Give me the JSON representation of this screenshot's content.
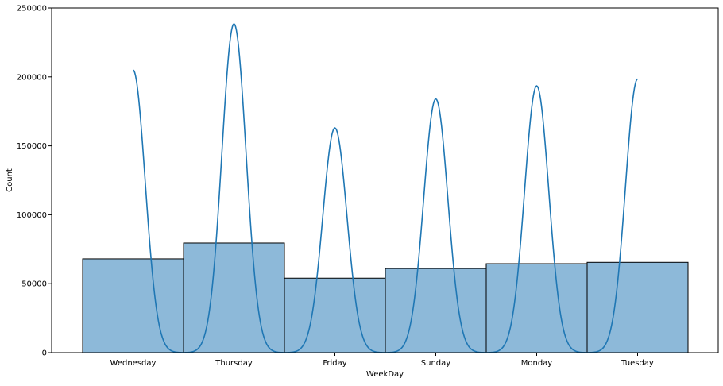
{
  "chart_data": {
    "type": "bar",
    "title": "",
    "xlabel": "WeekDay",
    "ylabel": "Count",
    "categories": [
      "Wednesday",
      "Thursday",
      "Friday",
      "Sunday",
      "Monday",
      "Tuesday"
    ],
    "values": [
      68000,
      79500,
      54000,
      61000,
      64500,
      65500
    ],
    "ylim": [
      0,
      250000
    ],
    "yticks": [
      0,
      50000,
      100000,
      150000,
      200000,
      250000
    ],
    "ytick_labels": [
      "0",
      "50000",
      "100000",
      "150000",
      "200000",
      "250000"
    ],
    "grid": false,
    "kde": {
      "type": "line",
      "peaks": [
        {
          "category": "Wednesday",
          "value": 205000
        },
        {
          "category": "Thursday",
          "value": 238500
        },
        {
          "category": "Friday",
          "value": 163000
        },
        {
          "category": "Sunday",
          "value": 184000
        },
        {
          "category": "Monday",
          "value": 193500
        },
        {
          "category": "Tuesday",
          "value": 198500
        }
      ],
      "minimum": 0
    },
    "colors": {
      "bar_fill": "#8db9d9",
      "bar_edge": "#000000",
      "kde_line": "#1f77b4"
    }
  }
}
